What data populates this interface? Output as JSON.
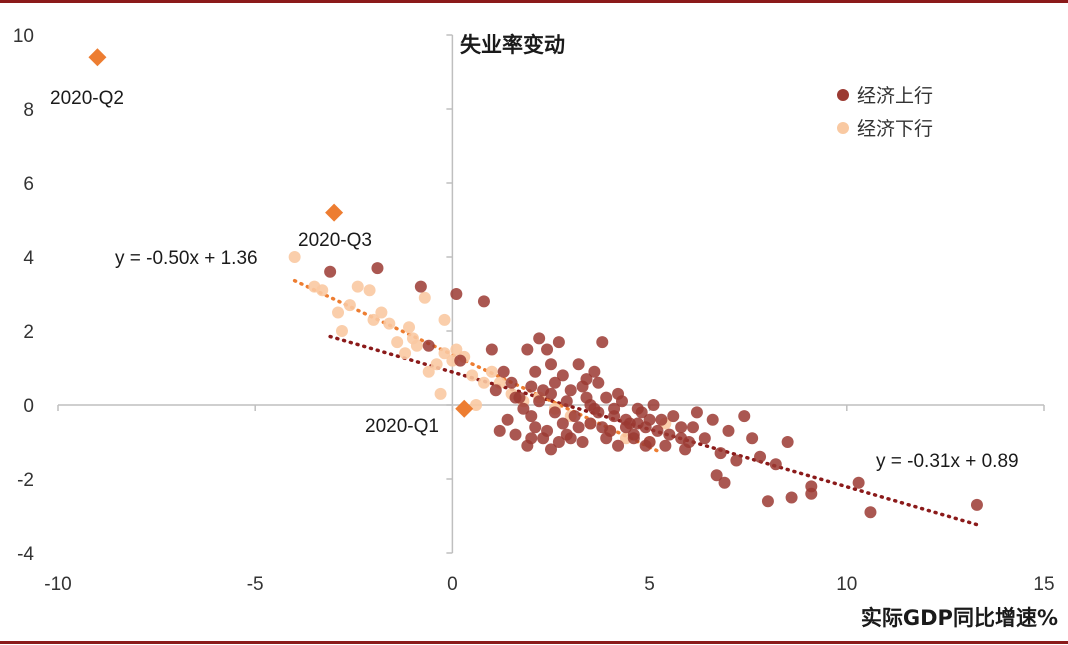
{
  "chart_data": {
    "type": "scatter",
    "xlabel": "实际GDP同比增速%",
    "ylabel": "失业率变动",
    "xlim": [
      -10,
      15
    ],
    "ylim": [
      -4,
      10
    ],
    "x_ticks": [
      "-10",
      "-5",
      "0",
      "5",
      "10",
      "15"
    ],
    "y_ticks": [
      "10",
      "8",
      "6",
      "4",
      "2",
      "0",
      "-2",
      "-4"
    ],
    "legend_position": "top-right",
    "colors": {
      "up": "#9b3a32",
      "down": "#f9c9a2",
      "highlight": "#ed7d31",
      "frame": "#8b1a1a"
    },
    "series": [
      {
        "name": "经济上行",
        "color": "#9b3a32",
        "trendline": {
          "label": "y = -0.31x + 0.89",
          "slope": -0.31,
          "intercept": 0.89,
          "x_range": [
            -3.1,
            13.3
          ]
        },
        "points": [
          [
            -3.1,
            3.6
          ],
          [
            -1.9,
            3.7
          ],
          [
            -0.8,
            3.2
          ],
          [
            -0.6,
            1.6
          ],
          [
            0.1,
            3.0
          ],
          [
            0.8,
            2.8
          ],
          [
            0.2,
            1.2
          ],
          [
            1.0,
            1.5
          ],
          [
            1.3,
            0.9
          ],
          [
            1.5,
            0.6
          ],
          [
            1.7,
            0.2
          ],
          [
            1.9,
            1.5
          ],
          [
            2.0,
            0.5
          ],
          [
            2.2,
            1.8
          ],
          [
            2.4,
            1.5
          ],
          [
            2.5,
            0.3
          ],
          [
            2.6,
            -0.2
          ],
          [
            2.7,
            1.7
          ],
          [
            2.8,
            0.8
          ],
          [
            3.0,
            0.4
          ],
          [
            3.2,
            1.1
          ],
          [
            3.4,
            0.7
          ],
          [
            3.6,
            0.9
          ],
          [
            3.8,
            1.7
          ],
          [
            3.9,
            0.2
          ],
          [
            4.1,
            -0.3
          ],
          [
            4.3,
            0.1
          ],
          [
            4.5,
            -0.5
          ],
          [
            4.7,
            -0.1
          ],
          [
            4.9,
            -0.6
          ],
          [
            5.1,
            0.0
          ],
          [
            5.3,
            -0.4
          ],
          [
            5.5,
            -0.8
          ],
          [
            5.8,
            -0.6
          ],
          [
            6.0,
            -1.0
          ],
          [
            6.2,
            -0.2
          ],
          [
            6.4,
            -0.9
          ],
          [
            6.6,
            -0.4
          ],
          [
            6.8,
            -1.3
          ],
          [
            7.0,
            -0.7
          ],
          [
            7.2,
            -1.5
          ],
          [
            7.4,
            -0.3
          ],
          [
            7.6,
            -0.9
          ],
          [
            7.8,
            -1.4
          ],
          [
            8.0,
            -2.6
          ],
          [
            8.2,
            -1.6
          ],
          [
            8.5,
            -1.0
          ],
          [
            8.6,
            -2.5
          ],
          [
            9.1,
            -2.2
          ],
          [
            9.1,
            -2.4
          ],
          [
            10.3,
            -2.1
          ],
          [
            10.6,
            -2.9
          ],
          [
            13.3,
            -2.7
          ],
          [
            6.7,
            -1.9
          ],
          [
            6.9,
            -2.1
          ],
          [
            2.1,
            -0.6
          ],
          [
            2.3,
            -0.9
          ],
          [
            2.5,
            -1.2
          ],
          [
            2.9,
            -0.8
          ],
          [
            3.1,
            -0.3
          ],
          [
            3.3,
            -1.0
          ],
          [
            3.5,
            -0.5
          ],
          [
            3.7,
            -0.2
          ],
          [
            4.0,
            -0.7
          ],
          [
            4.2,
            -1.1
          ],
          [
            4.4,
            -0.4
          ],
          [
            4.6,
            -0.9
          ],
          [
            4.8,
            -0.2
          ],
          [
            5.0,
            -1.0
          ],
          [
            5.2,
            -0.7
          ],
          [
            5.6,
            -0.3
          ],
          [
            5.9,
            -1.2
          ],
          [
            6.1,
            -0.6
          ],
          [
            1.8,
            -0.1
          ],
          [
            1.6,
            -0.8
          ],
          [
            1.4,
            -0.4
          ],
          [
            1.2,
            -0.7
          ],
          [
            2.0,
            -0.3
          ],
          [
            2.6,
            0.6
          ],
          [
            3.0,
            -0.9
          ],
          [
            3.4,
            0.2
          ],
          [
            3.8,
            -0.6
          ],
          [
            4.2,
            0.3
          ],
          [
            4.6,
            -0.8
          ],
          [
            5.4,
            -1.1
          ],
          [
            2.2,
            0.1
          ],
          [
            2.8,
            -0.5
          ],
          [
            3.6,
            -0.1
          ],
          [
            4.4,
            -0.6
          ],
          [
            5.0,
            -0.4
          ],
          [
            5.8,
            -0.9
          ],
          [
            1.9,
            -1.1
          ],
          [
            2.4,
            -0.7
          ],
          [
            2.7,
            -1.0
          ],
          [
            3.2,
            -0.6
          ],
          [
            3.9,
            -0.9
          ],
          [
            4.7,
            -0.5
          ],
          [
            1.1,
            0.4
          ],
          [
            1.6,
            0.2
          ],
          [
            2.3,
            0.4
          ],
          [
            2.9,
            0.1
          ],
          [
            3.5,
            0.0
          ],
          [
            4.1,
            -0.1
          ],
          [
            2.1,
            0.9
          ],
          [
            2.5,
            1.1
          ],
          [
            3.3,
            0.5
          ],
          [
            2.0,
            -0.9
          ],
          [
            3.7,
            0.6
          ],
          [
            4.9,
            -1.1
          ]
        ]
      },
      {
        "name": "经济下行",
        "color": "#f9c9a2",
        "trendline": {
          "label": "y = -0.50x + 1.36",
          "slope": -0.5,
          "intercept": 1.36,
          "x_range": [
            -4.0,
            5.2
          ]
        },
        "points": [
          [
            -4.0,
            4.0
          ],
          [
            -3.3,
            3.1
          ],
          [
            -2.9,
            2.5
          ],
          [
            -2.8,
            2.0
          ],
          [
            -2.4,
            3.2
          ],
          [
            -2.1,
            3.1
          ],
          [
            -2.0,
            2.3
          ],
          [
            -1.8,
            2.5
          ],
          [
            -1.6,
            2.2
          ],
          [
            -1.4,
            1.7
          ],
          [
            -1.1,
            2.1
          ],
          [
            -1.0,
            1.8
          ],
          [
            -0.9,
            1.6
          ],
          [
            -0.7,
            2.9
          ],
          [
            -0.4,
            1.1
          ],
          [
            -0.2,
            1.4
          ],
          [
            -0.2,
            2.3
          ],
          [
            0.1,
            1.5
          ],
          [
            0.3,
            1.3
          ],
          [
            0.5,
            0.8
          ],
          [
            0.8,
            0.6
          ],
          [
            1.0,
            0.9
          ],
          [
            1.2,
            0.6
          ],
          [
            1.5,
            0.3
          ],
          [
            1.8,
            0.1
          ],
          [
            -0.3,
            0.3
          ],
          [
            0.6,
            0.0
          ],
          [
            2.2,
            0.2
          ],
          [
            2.6,
            -0.1
          ],
          [
            3.0,
            -0.3
          ],
          [
            3.5,
            -0.5
          ],
          [
            4.0,
            -0.7
          ],
          [
            4.4,
            -0.9
          ],
          [
            5.0,
            -1.0
          ],
          [
            5.4,
            -0.5
          ],
          [
            -3.5,
            3.2
          ],
          [
            -2.6,
            2.7
          ],
          [
            -1.2,
            1.4
          ],
          [
            -0.6,
            0.9
          ],
          [
            0.0,
            1.2
          ]
        ]
      }
    ],
    "highlights": [
      {
        "label": "2020-Q2",
        "x": -9.0,
        "y": 9.4
      },
      {
        "label": "2020-Q3",
        "x": -3.0,
        "y": 5.2
      },
      {
        "label": "2020-Q1",
        "x": 0.3,
        "y": -0.1
      }
    ]
  }
}
